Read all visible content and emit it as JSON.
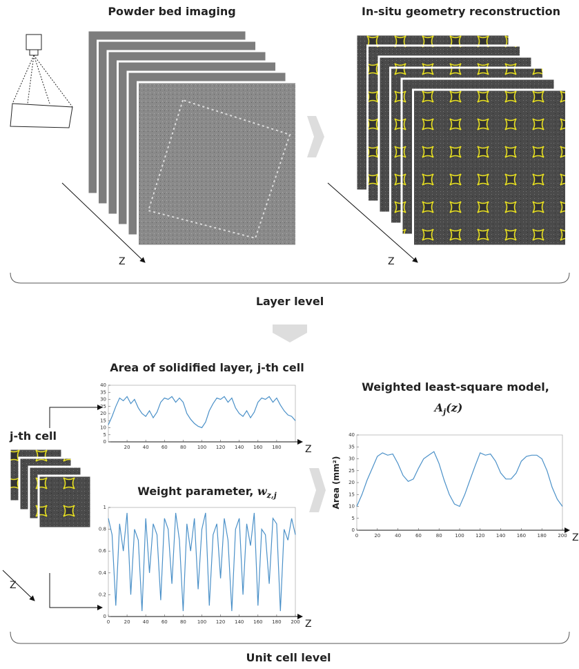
{
  "top": {
    "left_title": "Powder bed imaging",
    "right_title": "In-situ geometry reconstruction",
    "z_left": "Z",
    "z_right": "Z",
    "caption": "Layer level"
  },
  "bottom": {
    "cell_label": "j-th cell",
    "z_cell": "Z",
    "caption": "Unit cell level"
  },
  "charts": [
    {
      "type": "line",
      "title": "Area of solidified layer, j-th cell",
      "x_label": "Z",
      "color": "#4a90c8",
      "xlim": [
        0,
        200
      ],
      "ylim": [
        0,
        40
      ],
      "xticks": [
        20,
        40,
        60,
        80,
        100,
        120,
        140,
        160,
        180
      ],
      "yticks": [
        0,
        5,
        10,
        15,
        20,
        25,
        30,
        35,
        40
      ],
      "x": [
        0,
        4,
        8,
        12,
        16,
        20,
        24,
        28,
        32,
        36,
        40,
        44,
        48,
        52,
        56,
        60,
        64,
        68,
        72,
        76,
        80,
        84,
        88,
        92,
        96,
        100,
        104,
        108,
        112,
        116,
        120,
        124,
        128,
        132,
        136,
        140,
        144,
        148,
        152,
        156,
        160,
        164,
        168,
        172,
        176,
        180,
        184,
        188,
        192,
        196,
        200
      ],
      "values": [
        12,
        18,
        25,
        31,
        29,
        32,
        27,
        30,
        24,
        20,
        18,
        22,
        17,
        21,
        28,
        31,
        30,
        32,
        28,
        31,
        28,
        20,
        16,
        13,
        11,
        10,
        14,
        22,
        27,
        31,
        30,
        32,
        28,
        31,
        24,
        20,
        18,
        22,
        17,
        21,
        28,
        31,
        30,
        32,
        28,
        31,
        26,
        22,
        19,
        18,
        15
      ]
    },
    {
      "type": "line",
      "title": "Weight parameter,",
      "symbol": "w",
      "subscript": "z,j",
      "x_label": "Z",
      "color": "#4a90c8",
      "xlim": [
        0,
        200
      ],
      "ylim": [
        0,
        1
      ],
      "xticks": [
        0,
        20,
        40,
        60,
        80,
        100,
        120,
        140,
        160,
        180,
        200
      ],
      "yticks": [
        0,
        0.2,
        0.4,
        0.6,
        0.8,
        1
      ],
      "x": [
        0,
        4,
        8,
        12,
        16,
        20,
        24,
        28,
        32,
        36,
        40,
        44,
        48,
        52,
        56,
        60,
        64,
        68,
        72,
        76,
        80,
        84,
        88,
        92,
        96,
        100,
        104,
        108,
        112,
        116,
        120,
        124,
        128,
        132,
        136,
        140,
        144,
        148,
        152,
        156,
        160,
        164,
        168,
        172,
        176,
        180,
        184,
        188,
        192,
        196,
        200
      ],
      "values": [
        0.9,
        0.75,
        0.1,
        0.85,
        0.6,
        0.95,
        0.2,
        0.8,
        0.7,
        0.05,
        0.9,
        0.4,
        0.85,
        0.75,
        0.15,
        0.9,
        0.8,
        0.3,
        0.95,
        0.7,
        0.05,
        0.85,
        0.6,
        0.9,
        0.25,
        0.8,
        0.95,
        0.1,
        0.75,
        0.85,
        0.35,
        0.9,
        0.7,
        0.05,
        0.8,
        0.9,
        0.2,
        0.85,
        0.65,
        0.95,
        0.1,
        0.8,
        0.75,
        0.3,
        0.9,
        0.85,
        0.05,
        0.8,
        0.7,
        0.9,
        0.75
      ]
    },
    {
      "type": "line",
      "title": "Weighted least-square model,",
      "symbol": "A",
      "subscript": "j",
      "argument": "(z)",
      "x_label": "Z",
      "y_label": "Area (mm²)",
      "color": "#4a90c8",
      "xlim": [
        0,
        200
      ],
      "ylim": [
        0,
        40
      ],
      "xticks": [
        0,
        20,
        40,
        60,
        80,
        100,
        120,
        140,
        160,
        180,
        200
      ],
      "yticks": [
        0,
        5,
        10,
        15,
        20,
        25,
        30,
        35,
        40
      ],
      "x": [
        0,
        5,
        10,
        15,
        20,
        25,
        30,
        35,
        40,
        45,
        50,
        55,
        60,
        65,
        70,
        75,
        80,
        85,
        90,
        95,
        100,
        105,
        110,
        115,
        120,
        125,
        130,
        135,
        140,
        145,
        150,
        155,
        160,
        165,
        170,
        175,
        180,
        185,
        190,
        195,
        200
      ],
      "values": [
        10,
        15,
        21,
        26,
        31,
        32.5,
        31.5,
        32,
        28,
        23,
        20.5,
        21.5,
        26,
        30,
        31.5,
        33,
        28,
        21,
        15,
        11,
        10,
        15,
        21,
        27,
        32.5,
        31.5,
        32,
        29,
        24,
        21.5,
        21.5,
        24,
        29,
        31,
        31.5,
        31.5,
        30,
        25,
        18,
        13,
        10
      ]
    }
  ]
}
